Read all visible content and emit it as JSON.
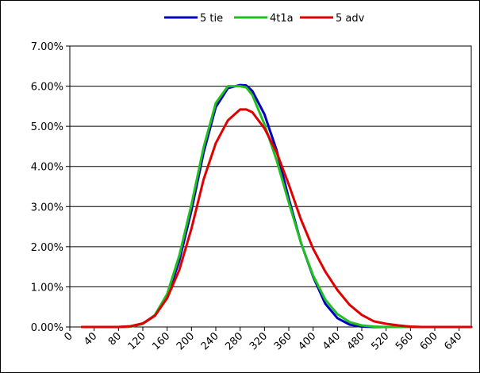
{
  "chart_data": {
    "type": "line",
    "title": "",
    "xlabel": "",
    "ylabel": "",
    "xlim": [
      0,
      660
    ],
    "ylim": [
      0,
      0.07
    ],
    "x_ticks": [
      0,
      40,
      80,
      120,
      160,
      200,
      240,
      280,
      320,
      360,
      400,
      440,
      480,
      520,
      560,
      600,
      640
    ],
    "x_tick_labels": [
      "0",
      "40",
      "80",
      "120",
      "160",
      "200",
      "240",
      "280",
      "320",
      "360",
      "400",
      "440",
      "480",
      "520",
      "560",
      "600",
      "640"
    ],
    "y_ticks": [
      0,
      0.01,
      0.02,
      0.03,
      0.04,
      0.05,
      0.06,
      0.07
    ],
    "y_tick_labels": [
      "0.00%",
      "1.00%",
      "2.00%",
      "3.00%",
      "4.00%",
      "5.00%",
      "6.00%",
      "7.00%"
    ],
    "grid": "horizontal",
    "legend_position": "top",
    "series": [
      {
        "name": "5 tie",
        "color": "#0000c0",
        "x": [
          20,
          40,
          60,
          80,
          100,
          120,
          140,
          160,
          180,
          200,
          220,
          240,
          260,
          280,
          290,
          300,
          320,
          340,
          360,
          380,
          400,
          420,
          440,
          460,
          480,
          500,
          520,
          540,
          560,
          580,
          600,
          620,
          640,
          660
        ],
        "y": [
          0,
          0,
          0,
          0,
          0.0001,
          0.0008,
          0.0028,
          0.0075,
          0.0165,
          0.029,
          0.0435,
          0.0548,
          0.0595,
          0.0603,
          0.0602,
          0.0588,
          0.053,
          0.044,
          0.032,
          0.021,
          0.0125,
          0.0058,
          0.0022,
          0.0006,
          0.0001,
          0,
          0,
          0,
          0,
          0,
          0,
          0,
          0,
          0
        ]
      },
      {
        "name": "4t1a",
        "color": "#20c020",
        "x": [
          20,
          40,
          60,
          80,
          100,
          120,
          140,
          160,
          180,
          200,
          220,
          240,
          260,
          280,
          290,
          300,
          320,
          340,
          360,
          380,
          400,
          420,
          440,
          460,
          480,
          500,
          520,
          540,
          560,
          580,
          600,
          620,
          640,
          660
        ],
        "y": [
          0,
          0,
          0,
          0,
          0.0001,
          0.0008,
          0.003,
          0.0082,
          0.0178,
          0.0305,
          0.0448,
          0.0558,
          0.06,
          0.06,
          0.0597,
          0.0578,
          0.0505,
          0.0415,
          0.031,
          0.021,
          0.0128,
          0.0068,
          0.0032,
          0.0012,
          0.0004,
          0.0001,
          0,
          0,
          0,
          0,
          0,
          0,
          0,
          0
        ]
      },
      {
        "name": "5 adv",
        "color": "#e00000",
        "x": [
          20,
          40,
          60,
          80,
          100,
          120,
          140,
          160,
          180,
          200,
          220,
          240,
          260,
          280,
          290,
          300,
          320,
          340,
          360,
          380,
          400,
          420,
          440,
          460,
          480,
          500,
          520,
          540,
          560,
          580,
          600,
          620,
          640,
          660
        ],
        "y": [
          0,
          0,
          0,
          0,
          0.0002,
          0.0009,
          0.0028,
          0.0072,
          0.0142,
          0.0245,
          0.0368,
          0.0458,
          0.0515,
          0.0542,
          0.0542,
          0.0535,
          0.0495,
          0.0435,
          0.0355,
          0.0268,
          0.0195,
          0.0138,
          0.0092,
          0.0055,
          0.003,
          0.0014,
          0.0008,
          0.0004,
          0.0001,
          0,
          0,
          0,
          0,
          0
        ]
      }
    ]
  }
}
